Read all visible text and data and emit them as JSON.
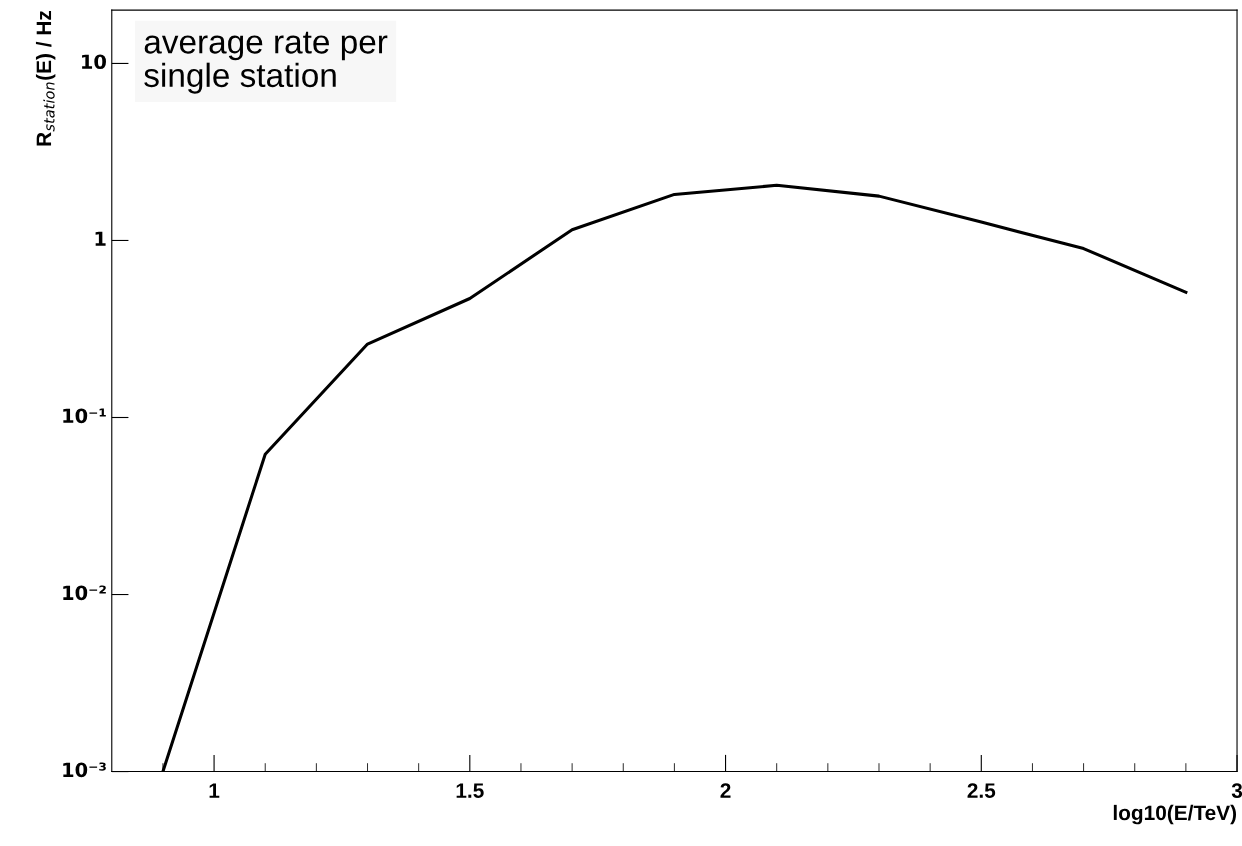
{
  "chart_data": {
    "type": "line",
    "xlabel": "log10(E/TeV)",
    "ylabel": "R$_{station}$(E) / Hz",
    "annotations": [
      "average rate per\nsingle station"
    ],
    "x": [
      0.9,
      1.1,
      1.3,
      1.5,
      1.7,
      1.9,
      2.1,
      2.3,
      2.5,
      2.7,
      2.9
    ],
    "series": [
      {
        "color": "#000000",
        "values": [
          0.001,
          0.062,
          0.26,
          0.47,
          1.15,
          1.82,
          2.05,
          1.78,
          1.27,
          0.9,
          0.51
        ]
      }
    ],
    "log": "y",
    "xlim": [
      0.8,
      3
    ],
    "xticks": [
      1,
      1.5,
      2,
      2.5,
      3
    ],
    "ylim": [
      0.001,
      20
    ],
    "yticks": [
      {
        "value": 0.001,
        "label": "10⁻³"
      },
      {
        "value": 0.01,
        "label": "10⁻²"
      },
      {
        "value": 0.1,
        "label": "10⁻¹"
      },
      1,
      10
    ],
    "grid": false,
    "marker": "none",
    "line_style": "solid"
  }
}
